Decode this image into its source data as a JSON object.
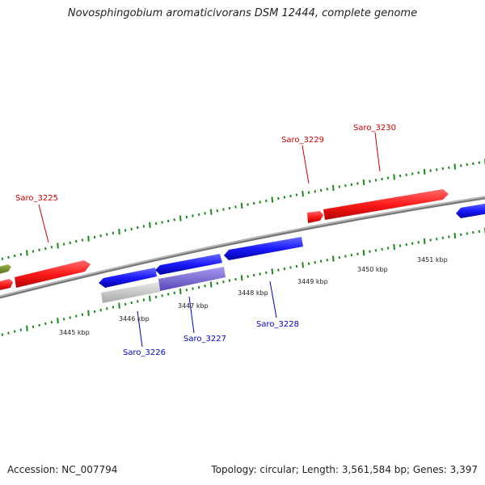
{
  "title": "Novosphingobium aromaticivorans DSM 12444, complete genome",
  "footer": {
    "accession": "Accession: NC_007794",
    "topology": "Topology: circular; Length: 3,561,584 bp; Genes: 3,397"
  },
  "colors": {
    "forward_gene": "#ff1a1a",
    "reverse_gene": "#1a1aff",
    "other_gene_green": "#6b8e23",
    "rna_gray": "#c8c8c8",
    "rna_purple": "#7a6ad8",
    "backbone": "#888888",
    "tick": "#1a8a1a",
    "forward_label": "#cc0000",
    "reverse_label": "#0000cc"
  },
  "scale_labels": [
    "3445 kbp",
    "3446 kbp",
    "3447 kbp",
    "3448 kbp",
    "3449 kbp",
    "3450 kbp",
    "3451 kbp"
  ],
  "gene_labels": {
    "forward": [
      "Saro_3225",
      "Saro_3229",
      "Saro_3230"
    ],
    "reverse": [
      "Saro_3226",
      "Saro_3227",
      "Saro_3228"
    ]
  }
}
